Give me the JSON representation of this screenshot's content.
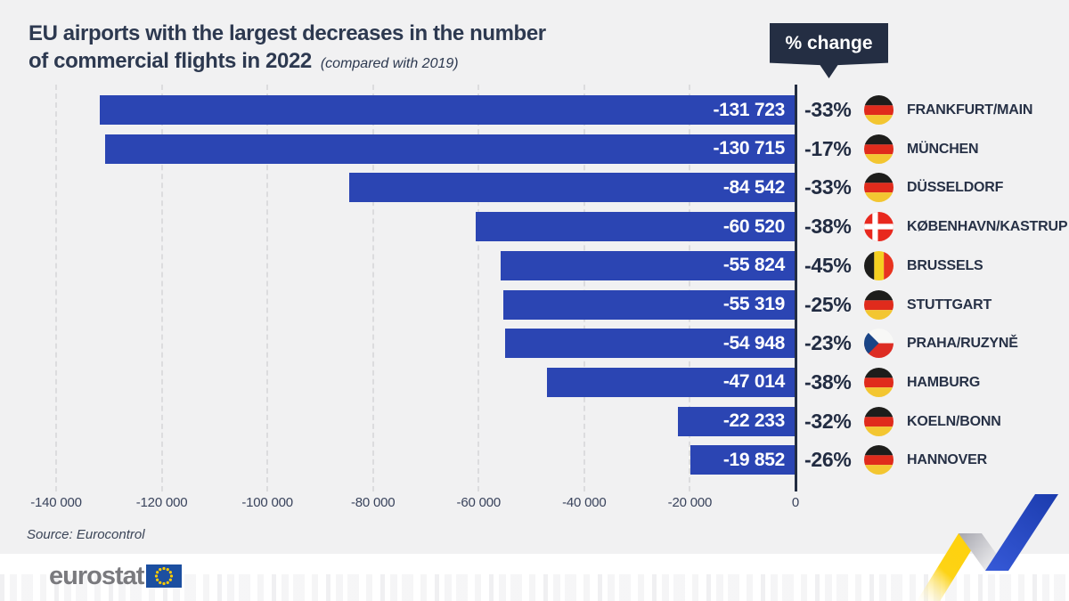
{
  "header": {
    "title_line1": "EU airports with the largest decreases in the number",
    "title_line2": "of commercial flights in 2022",
    "subtitle": "(compared with 2019)",
    "badge_label": "% change"
  },
  "chart_data": {
    "type": "bar",
    "orientation": "horizontal",
    "title": "EU airports with the largest decreases in the number of commercial flights in 2022 (compared with 2019)",
    "xlim": [
      -140000,
      0
    ],
    "grid": "dashed-vertical",
    "x_ticks": [
      {
        "value": -140000,
        "label": "-140 000"
      },
      {
        "value": -120000,
        "label": "-120 000"
      },
      {
        "value": -100000,
        "label": "-100 000"
      },
      {
        "value": -80000,
        "label": "-80 000"
      },
      {
        "value": -60000,
        "label": "-60 000"
      },
      {
        "value": -40000,
        "label": "-40 000"
      },
      {
        "value": -20000,
        "label": "-20 000"
      },
      {
        "value": 0,
        "label": "0"
      }
    ],
    "rows": [
      {
        "airport": "FRANKFURT/MAIN",
        "country": "de",
        "value": -131723,
        "value_label": "-131 723",
        "pct_label": "-33%"
      },
      {
        "airport": "MÜNCHEN",
        "country": "de",
        "value": -130715,
        "value_label": "-130 715",
        "pct_label": "-17%"
      },
      {
        "airport": "DÜSSELDORF",
        "country": "de",
        "value": -84542,
        "value_label": "-84 542",
        "pct_label": "-33%"
      },
      {
        "airport": "KØBENHAVN/KASTRUP",
        "country": "dk",
        "value": -60520,
        "value_label": "-60 520",
        "pct_label": "-38%"
      },
      {
        "airport": "BRUSSELS",
        "country": "be",
        "value": -55824,
        "value_label": "-55 824",
        "pct_label": "-45%"
      },
      {
        "airport": "STUTTGART",
        "country": "de",
        "value": -55319,
        "value_label": "-55 319",
        "pct_label": "-25%"
      },
      {
        "airport": "PRAHA/RUZYNĚ",
        "country": "cz",
        "value": -54948,
        "value_label": "-54 948",
        "pct_label": "-23%"
      },
      {
        "airport": "HAMBURG",
        "country": "de",
        "value": -47014,
        "value_label": "-47 014",
        "pct_label": "-38%"
      },
      {
        "airport": "KOELN/BONN",
        "country": "de",
        "value": -22233,
        "value_label": "-22 233",
        "pct_label": "-32%"
      },
      {
        "airport": "HANNOVER",
        "country": "de",
        "value": -19852,
        "value_label": "-19 852",
        "pct_label": "-26%"
      }
    ]
  },
  "source": {
    "text": "Source: Eurocontrol"
  },
  "footer": {
    "logo_text": "eurostat"
  },
  "colors": {
    "bar_blue": "#2b45b3",
    "dark_navy": "#242e43",
    "background_gray": "#f1f1f2",
    "ribbon_yellow": "#fed10a",
    "ribbon_blue": "#2347c0",
    "eu_flag_blue": "#1c4fa0",
    "eu_star_yellow": "#ffcc00",
    "flag_black": "#1d1d1b",
    "flag_red": "#e02b1c",
    "flag_gold": "#f3c631",
    "czech_blue": "#1a4486"
  }
}
